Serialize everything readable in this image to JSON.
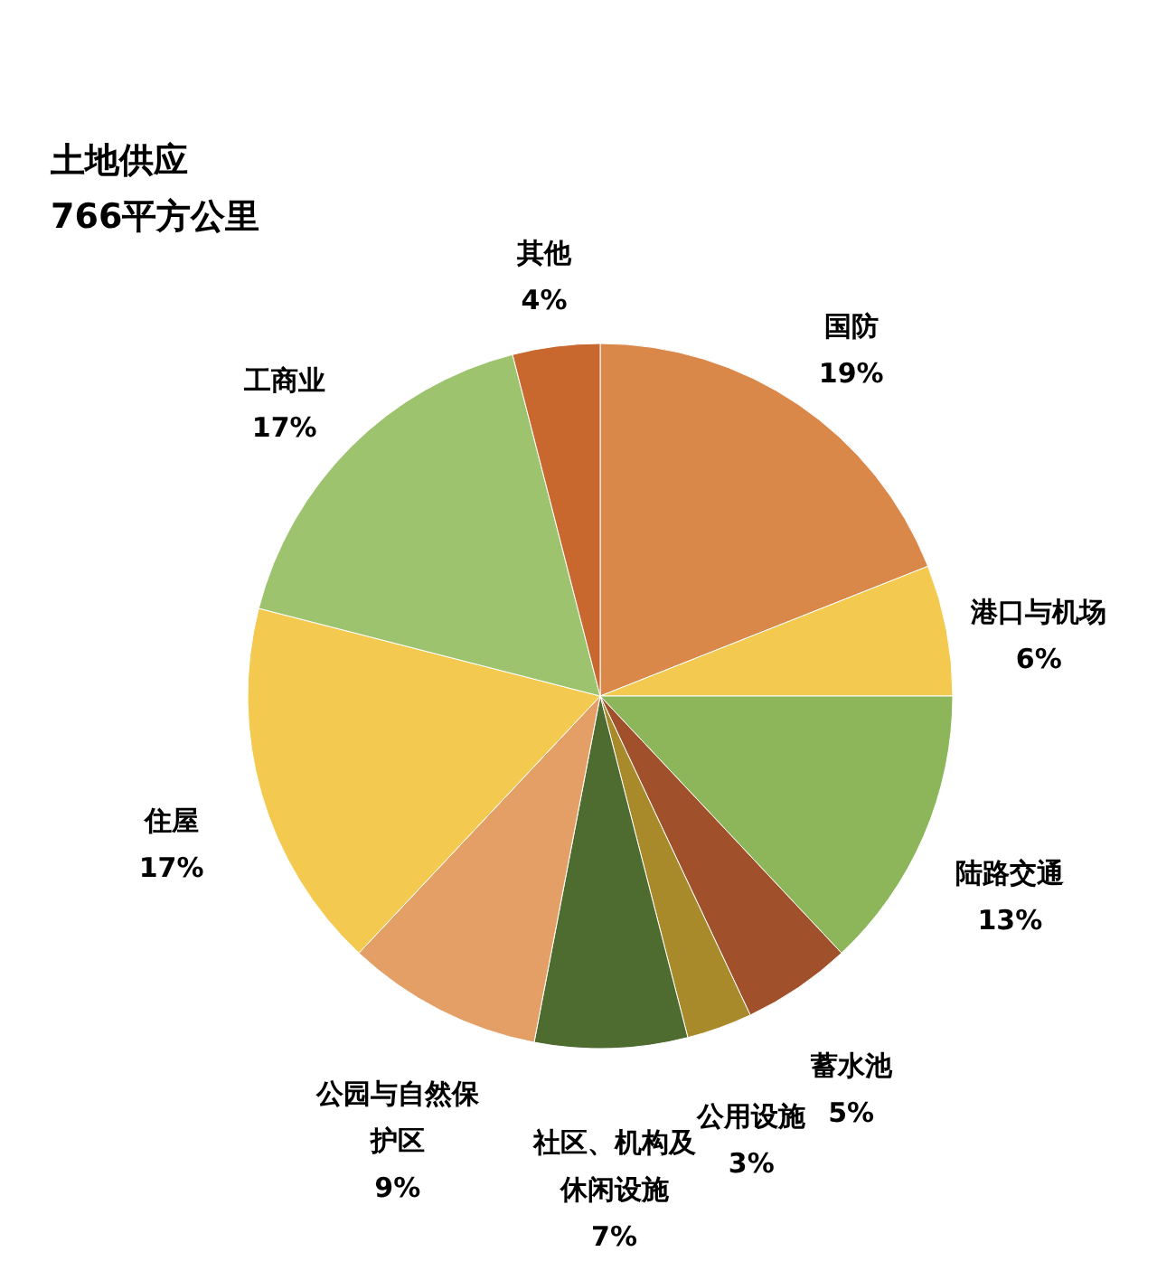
{
  "chart_data": {
    "type": "pie",
    "title": "土地供应",
    "subtitle": "766平方公里",
    "categories": [
      "国防",
      "港口与机场",
      "陆路交通",
      "蓄水池",
      "公用设施",
      "社区、机构及休闲设施",
      "公园与自然保护区",
      "住屋",
      "工商业",
      "其他"
    ],
    "values": [
      19,
      6,
      13,
      5,
      3,
      7,
      9,
      17,
      17,
      4
    ],
    "value_labels": [
      "19%",
      "6%",
      "13%",
      "5%",
      "3%",
      "7%",
      "9%",
      "17%",
      "17%",
      "4%"
    ],
    "colors": [
      "#d9884a",
      "#f3c94f",
      "#8db55a",
      "#a0502a",
      "#a88a2a",
      "#4e6b30",
      "#e49f66",
      "#f3c94f",
      "#9dc36e",
      "#c8672e"
    ],
    "legend": false
  }
}
